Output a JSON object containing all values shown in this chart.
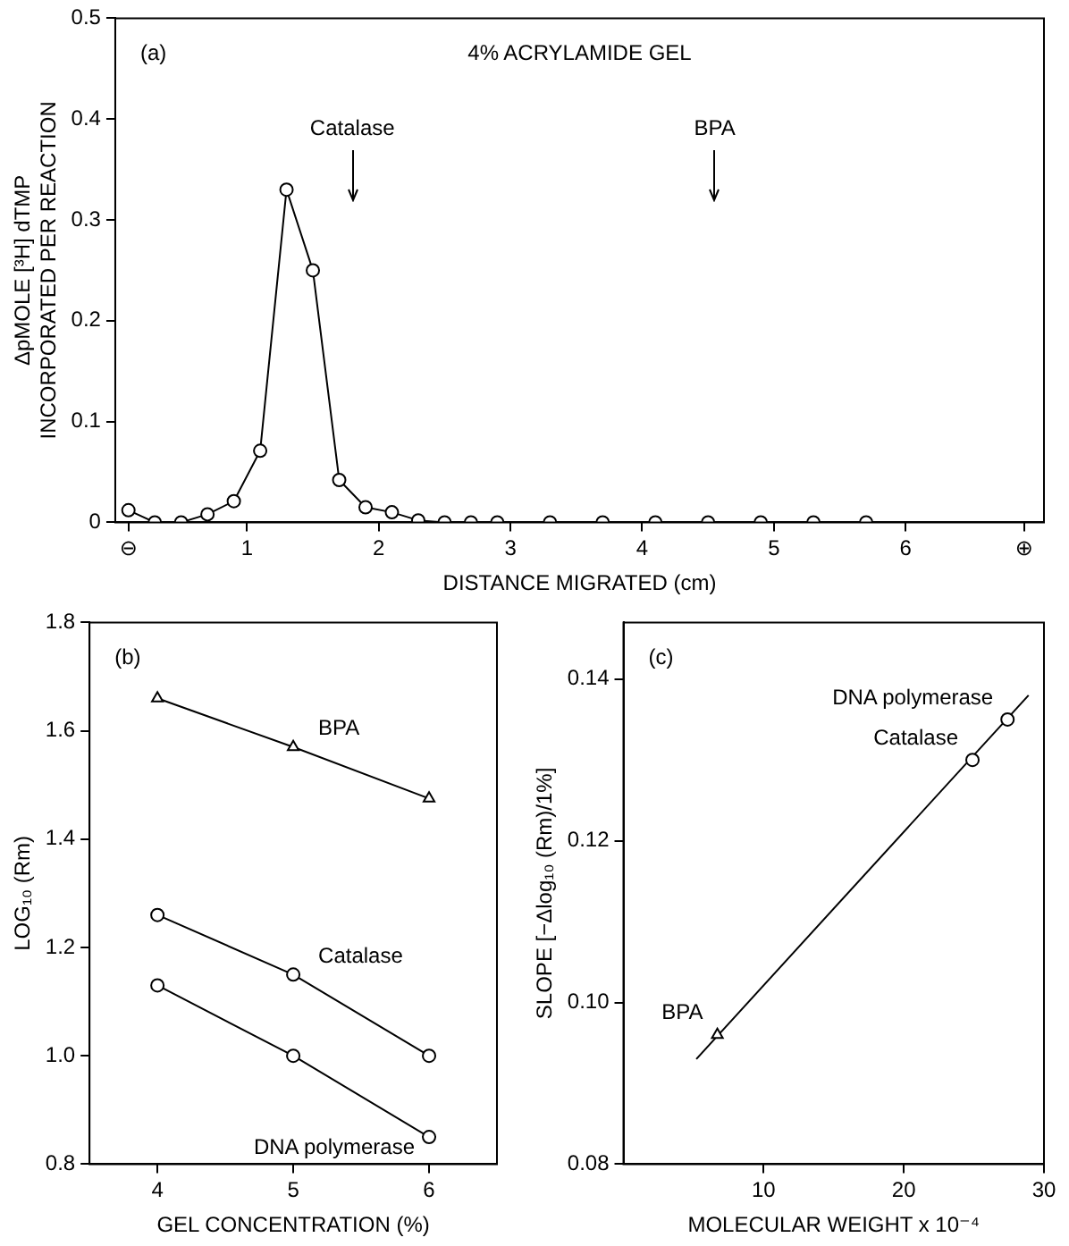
{
  "chart_data": [
    {
      "type": "line",
      "title": "4% ACRYLAMIDE GEL",
      "xlabel": "DISTANCE MIGRATED (cm)",
      "ylabel": "ΔpMOLE [³H] dTMP INCORPORATED PER REACTION",
      "annotations": [
        "(a)"
      ],
      "ref_lines": [
        {
          "axis": "x",
          "value": 1.8,
          "label": "Catalase"
        },
        {
          "axis": "x",
          "value": 4.55,
          "label": "BPA"
        }
      ],
      "x": [
        0.1,
        0.3,
        0.5,
        0.7,
        0.9,
        1.1,
        1.3,
        1.5,
        1.7,
        1.9,
        2.1,
        2.3,
        2.5,
        2.7,
        2.9,
        3.3,
        3.7,
        4.1,
        4.5,
        4.9,
        5.3,
        5.7
      ],
      "series": [
        {
          "color": "#000000",
          "values": [
            0.012,
            0,
            0,
            0.008,
            0.021,
            0.071,
            0.33,
            0.25,
            0.042,
            0.015,
            0.01,
            0.002,
            0,
            0,
            0,
            0,
            0,
            0,
            0,
            0,
            0,
            0
          ]
        }
      ],
      "xlim": [
        0,
        7.05
      ],
      "xticks": [
        {
          "value": 0.1,
          "label": "⊖"
        },
        1,
        2,
        3,
        4,
        5,
        6,
        {
          "value": 6.9,
          "label": "⊕"
        }
      ],
      "ylim": [
        0,
        0.5
      ],
      "yticks": [
        0,
        0.1,
        0.2,
        0.3,
        0.4,
        0.5
      ],
      "grid": false,
      "legend": false,
      "marker": "circle",
      "line_style": "solid"
    },
    {
      "type": "line",
      "xlabel": "GEL CONCENTRATION (%)",
      "ylabel": "LOG₁₀ (Rm)",
      "annotations": [
        "(b)"
      ],
      "x": [
        4,
        5,
        6
      ],
      "series": [
        {
          "name": "BPA",
          "color": "#000000",
          "marker": "triangle",
          "values": [
            1.66,
            1.57,
            1.475
          ]
        },
        {
          "name": "Catalase",
          "color": "#000000",
          "marker": "circle",
          "values": [
            1.26,
            1.15,
            1.0
          ]
        },
        {
          "name": "DNA polymerase",
          "color": "#000000",
          "marker": "circle",
          "values": [
            1.13,
            1.0,
            0.85
          ]
        }
      ],
      "xlim": [
        3.5,
        6.5
      ],
      "xticks": [
        4,
        5,
        6
      ],
      "ylim": [
        0.8,
        1.8
      ],
      "yticks": [
        0.8,
        {
          "value": 1,
          "label": "1.0"
        },
        1.2,
        1.4,
        1.6,
        1.8
      ],
      "grid": false,
      "legend": false,
      "line_style": "solid"
    },
    {
      "type": "scatter",
      "xlabel": "MOLECULAR WEIGHT x 10⁻⁴",
      "ylabel": "SLOPE [−Δlog₁₀ (Rm)/1%]",
      "annotations": [
        "(c)"
      ],
      "series": [
        {
          "name": "BPA",
          "color": "#000000",
          "marker": "triangle",
          "x": [
            6.7
          ],
          "values": [
            0.096
          ]
        },
        {
          "name": "Catalase",
          "color": "#000000",
          "marker": "circle",
          "x": [
            24.9
          ],
          "values": [
            0.13
          ]
        },
        {
          "name": "DNA polymerase",
          "color": "#000000",
          "marker": "circle",
          "x": [
            27.4
          ],
          "values": [
            0.135
          ]
        },
        {
          "type": "line",
          "color": "#000000",
          "marker": "none",
          "x": [
            5.2,
            28.9
          ],
          "values": [
            0.093,
            0.138
          ]
        }
      ],
      "xlim": [
        0,
        30
      ],
      "xticks": [
        10,
        20,
        30
      ],
      "ylim": [
        0.08,
        0.147
      ],
      "yticks": [
        {
          "value": 0.08,
          "label": "0.08"
        },
        {
          "value": 0.1,
          "label": "0.10"
        },
        {
          "value": 0.12,
          "label": "0.12"
        },
        {
          "value": 0.14,
          "label": "0.14"
        }
      ],
      "grid": false,
      "legend": false,
      "line_style": "solid"
    }
  ]
}
